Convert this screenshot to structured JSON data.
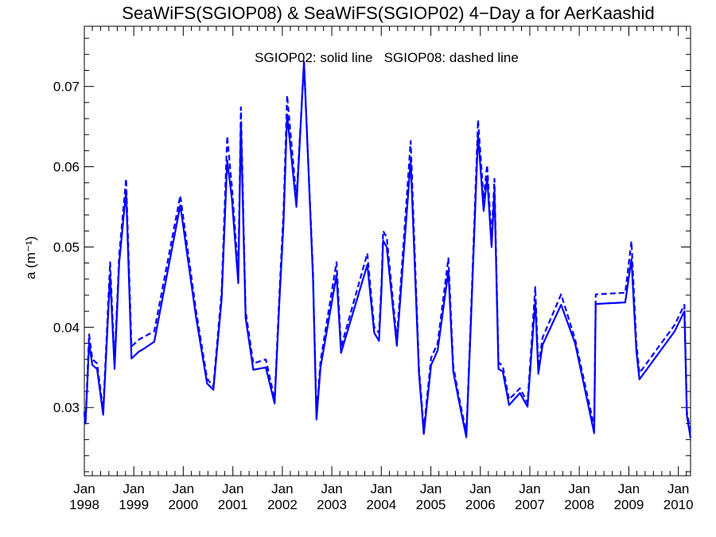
{
  "chart_data": {
    "type": "line",
    "title": "SeaWiFS(SGIOP08) & SeaWiFS(SGIOP02) 4−Day a for AerKaashid",
    "annotation": "SGIOP02: solid line   SGIOP08: dashed line",
    "ylabel": "a (m⁻¹)",
    "xlabel": "",
    "x_axis": {
      "type": "date",
      "range": [
        "1998-01-01",
        "2010-04-01"
      ],
      "ticks": [
        {
          "month": "Jan",
          "year": "1998"
        },
        {
          "month": "Jan",
          "year": "1999"
        },
        {
          "month": "Jan",
          "year": "2000"
        },
        {
          "month": "Jan",
          "year": "2001"
        },
        {
          "month": "Jan",
          "year": "2002"
        },
        {
          "month": "Jan",
          "year": "2003"
        },
        {
          "month": "Jan",
          "year": "2004"
        },
        {
          "month": "Jan",
          "year": "2005"
        },
        {
          "month": "Jan",
          "year": "2006"
        },
        {
          "month": "Jan",
          "year": "2007"
        },
        {
          "month": "Jan",
          "year": "2008"
        },
        {
          "month": "Jan",
          "year": "2009"
        },
        {
          "month": "Jan",
          "year": "2010"
        }
      ]
    },
    "y_axis": {
      "range": [
        0.0215,
        0.0775
      ],
      "ticks": [
        "0.03",
        "0.04",
        "0.05",
        "0.06",
        "0.07"
      ]
    },
    "grid": false,
    "line_color": "#0000ff",
    "series": [
      {
        "name": "SGIOP02",
        "style": "solid",
        "x": [
          "1998-01-01",
          "1998-01-10",
          "1998-02-05",
          "1998-03-01",
          "1998-04-05",
          "1998-05-20",
          "1998-07-10",
          "1998-08-12",
          "1998-09-15",
          "1998-11-05",
          "1998-12-15",
          "1999-02-10",
          "1999-03-05",
          "1999-06-01",
          "1999-12-10",
          "2000-04-05",
          "2000-06-25",
          "2000-08-10",
          "2000-10-10",
          "2000-11-20",
          "2000-12-25",
          "2001-02-10",
          "2001-03-01",
          "2001-04-05",
          "2001-06-01",
          "2001-09-01",
          "2001-11-05",
          "2001-12-10",
          "2002-01-10",
          "2002-02-05",
          "2002-04-15",
          "2002-06-10",
          "2002-08-15",
          "2002-09-10",
          "2002-10-10",
          "2003-02-05",
          "2003-03-10",
          "2003-09-20",
          "2003-11-10",
          "2003-12-15",
          "2004-01-03",
          "2004-01-15",
          "2004-02-10",
          "2004-04-25",
          "2004-08-05",
          "2004-10-05",
          "2004-11-10",
          "2005-01-03",
          "2005-02-20",
          "2005-05-10",
          "2005-06-15",
          "2005-07-25",
          "2005-09-20",
          "2005-10-20",
          "2005-12-15",
          "2006-01-25",
          "2006-02-20",
          "2006-03-25",
          "2006-04-15",
          "2006-05-15",
          "2006-06-15",
          "2006-08-01",
          "2006-10-20",
          "2006-12-15",
          "2007-02-10",
          "2007-03-05",
          "2007-04-05",
          "2007-08-20",
          "2007-12-01",
          "2008-04-20",
          "2008-05-01",
          "2008-12-05",
          "2009-01-20",
          "2009-02-25",
          "2009-03-20",
          "2009-12-05",
          "2010-02-15",
          "2010-03-05",
          "2010-04-01"
        ],
        "y": [
          0.0292,
          0.028,
          0.038,
          0.0353,
          0.0348,
          0.0291,
          0.0465,
          0.0348,
          0.048,
          0.057,
          0.0361,
          0.037,
          0.0372,
          0.0382,
          0.0552,
          0.0412,
          0.033,
          0.0322,
          0.0435,
          0.0608,
          0.056,
          0.0455,
          0.0655,
          0.0412,
          0.0347,
          0.035,
          0.0305,
          0.043,
          0.053,
          0.0665,
          0.055,
          0.0731,
          0.0462,
          0.0285,
          0.035,
          0.0465,
          0.0368,
          0.0478,
          0.0393,
          0.0383,
          0.0448,
          0.0508,
          0.05,
          0.0377,
          0.0608,
          0.0343,
          0.0267,
          0.0353,
          0.0371,
          0.047,
          0.0345,
          0.031,
          0.0263,
          0.039,
          0.064,
          0.0545,
          0.0587,
          0.05,
          0.057,
          0.0348,
          0.0345,
          0.0303,
          0.0318,
          0.0301,
          0.0432,
          0.0342,
          0.0378,
          0.0428,
          0.038,
          0.0268,
          0.0429,
          0.0431,
          0.0485,
          0.037,
          0.0335,
          0.0395,
          0.042,
          0.029,
          0.0262
        ]
      },
      {
        "name": "SGIOP08",
        "style": "dashed",
        "x": [
          "1998-01-01",
          "1998-01-10",
          "1998-02-05",
          "1998-03-01",
          "1998-04-05",
          "1998-05-20",
          "1998-07-10",
          "1998-08-12",
          "1998-09-15",
          "1998-11-05",
          "1998-12-15",
          "1999-02-10",
          "1999-03-05",
          "1999-06-01",
          "1999-12-10",
          "2000-04-05",
          "2000-06-25",
          "2000-08-10",
          "2000-10-10",
          "2000-11-20",
          "2000-12-25",
          "2001-02-10",
          "2001-03-01",
          "2001-04-05",
          "2001-06-01",
          "2001-09-01",
          "2001-11-05",
          "2001-12-10",
          "2002-01-10",
          "2002-02-05",
          "2002-04-15",
          "2002-06-10",
          "2002-08-15",
          "2002-09-10",
          "2002-10-10",
          "2003-02-05",
          "2003-03-10",
          "2003-09-20",
          "2003-11-10",
          "2003-12-15",
          "2004-01-03",
          "2004-01-15",
          "2004-02-10",
          "2004-04-25",
          "2004-08-05",
          "2004-10-05",
          "2004-11-10",
          "2005-01-03",
          "2005-02-20",
          "2005-05-10",
          "2005-06-15",
          "2005-07-25",
          "2005-09-20",
          "2005-10-20",
          "2005-12-15",
          "2006-01-25",
          "2006-02-20",
          "2006-03-25",
          "2006-04-15",
          "2006-05-15",
          "2006-06-15",
          "2006-08-01",
          "2006-10-20",
          "2006-12-15",
          "2007-02-10",
          "2007-03-05",
          "2007-04-05",
          "2007-08-20",
          "2007-12-01",
          "2008-04-20",
          "2008-05-01",
          "2008-12-05",
          "2009-01-20",
          "2009-02-25",
          "2009-03-20",
          "2009-12-05",
          "2010-02-15",
          "2010-03-05",
          "2010-04-01"
        ],
        "y": [
          0.0295,
          0.0283,
          0.0391,
          0.036,
          0.0355,
          0.0296,
          0.0481,
          0.0355,
          0.049,
          0.0585,
          0.0376,
          0.0385,
          0.0387,
          0.0395,
          0.0564,
          0.042,
          0.0336,
          0.0326,
          0.0445,
          0.0638,
          0.0575,
          0.0468,
          0.0674,
          0.042,
          0.0355,
          0.036,
          0.031,
          0.044,
          0.0545,
          0.0689,
          0.056,
          0.0729,
          0.047,
          0.029,
          0.0358,
          0.0481,
          0.0375,
          0.0492,
          0.04,
          0.0393,
          0.0455,
          0.052,
          0.0512,
          0.0385,
          0.0632,
          0.035,
          0.0273,
          0.0362,
          0.038,
          0.0486,
          0.0352,
          0.0315,
          0.0268,
          0.0398,
          0.0658,
          0.056,
          0.0602,
          0.051,
          0.0585,
          0.0356,
          0.0352,
          0.031,
          0.0324,
          0.0306,
          0.045,
          0.035,
          0.0387,
          0.0441,
          0.0385,
          0.0276,
          0.0441,
          0.0443,
          0.0507,
          0.038,
          0.0343,
          0.0403,
          0.0428,
          0.0295,
          0.0268
        ]
      }
    ]
  }
}
